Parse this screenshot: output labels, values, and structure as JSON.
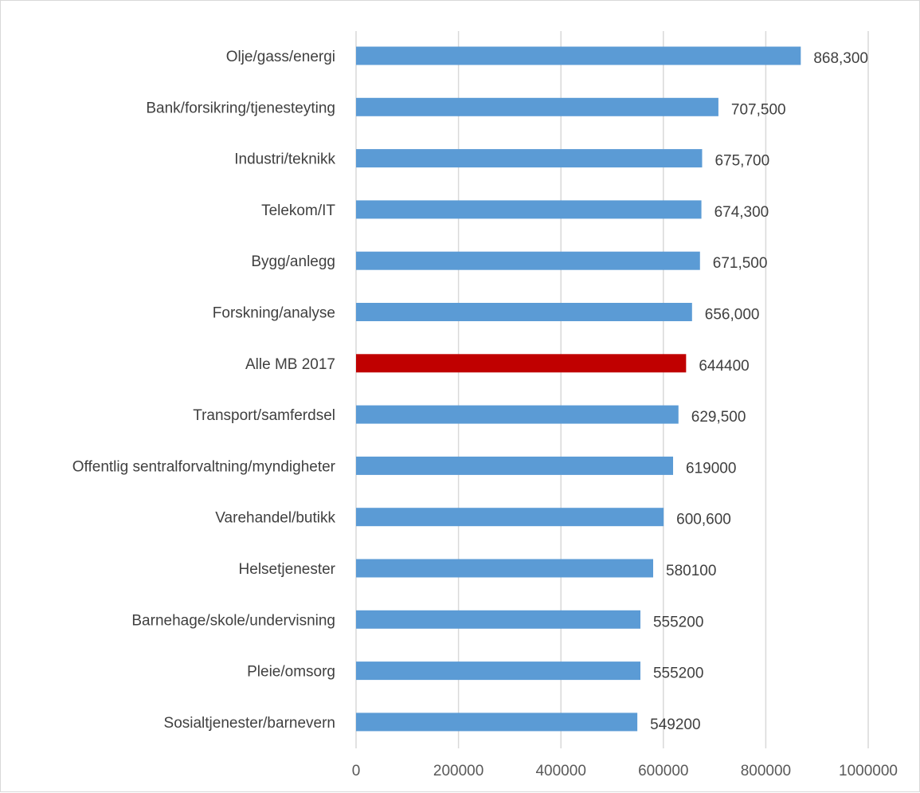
{
  "chart_data": {
    "type": "bar",
    "orientation": "horizontal",
    "categories": [
      "Olje/gass/energi",
      "Bank/forsikring/tjenesteyting",
      "Industri/teknikk",
      "Telekom/IT",
      "Bygg/anlegg",
      "Forskning/analyse",
      "Alle MB 2017",
      "Transport/samferdsel",
      "Offentlig sentralforvaltning/myndigheter",
      "Varehandel/butikk",
      "Helsetjenester",
      "Barnehage/skole/undervisning",
      "Pleie/omsorg",
      "Sosialtjenester/barnevern"
    ],
    "values": [
      868300,
      707500,
      675700,
      674300,
      671500,
      656000,
      644400,
      629500,
      619000,
      600600,
      580100,
      555200,
      555200,
      549200
    ],
    "data_labels": [
      "868,300",
      "707,500",
      "675,700",
      "674,300",
      "671,500",
      "656,000",
      "644400",
      "629,500",
      "619000",
      "600,600",
      "580100",
      "555200",
      "555200",
      "549200"
    ],
    "bar_colors": [
      "#5b9bd5",
      "#5b9bd5",
      "#5b9bd5",
      "#5b9bd5",
      "#5b9bd5",
      "#5b9bd5",
      "#c00000",
      "#5b9bd5",
      "#5b9bd5",
      "#5b9bd5",
      "#5b9bd5",
      "#5b9bd5",
      "#5b9bd5",
      "#5b9bd5"
    ],
    "x_ticks": [
      0,
      200000,
      400000,
      600000,
      800000,
      1000000
    ],
    "x_tick_labels": [
      "0",
      "200000",
      "400000",
      "600000",
      "800000",
      "1000000"
    ],
    "xlim": [
      0,
      1000000
    ],
    "grid": "vertical",
    "legend": "none",
    "title": "",
    "xlabel": "",
    "ylabel": ""
  }
}
